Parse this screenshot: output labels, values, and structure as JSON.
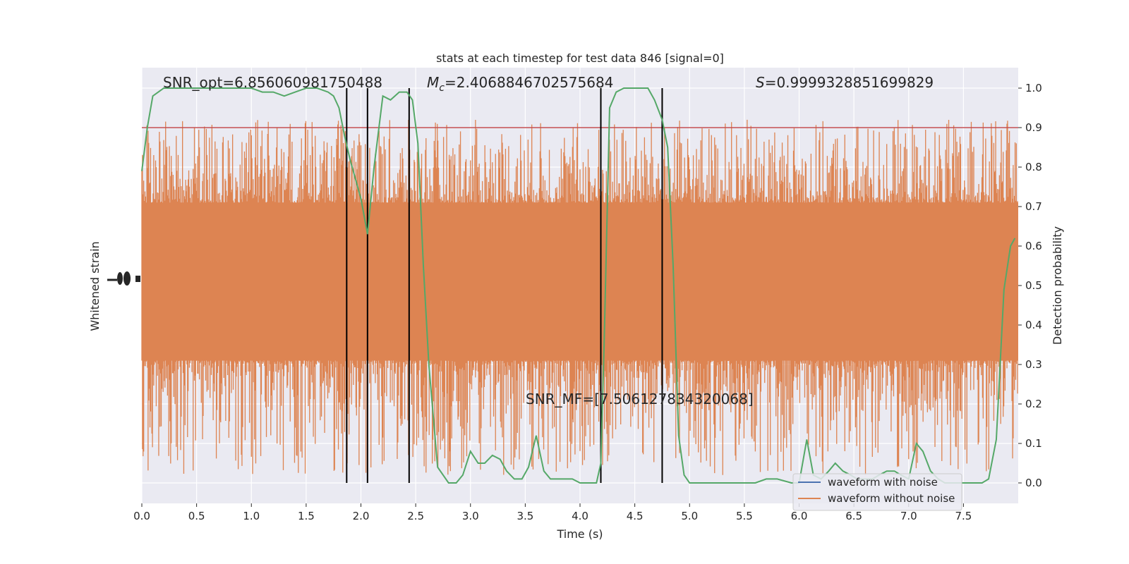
{
  "chart_data": {
    "type": "line",
    "title": "stats at each timestep for test data 846 [signal=0]",
    "xlabel": "Time (s)",
    "ylabel_left": "Whitened strain",
    "ylabel_right": "Detection probability",
    "xlim": [
      0.0,
      8.0
    ],
    "ylim_right": [
      -0.05,
      1.05
    ],
    "x_ticks": [
      "0.0",
      "0.5",
      "1.0",
      "1.5",
      "2.0",
      "2.5",
      "3.0",
      "3.5",
      "4.0",
      "4.5",
      "5.0",
      "5.5",
      "6.0",
      "6.5",
      "7.0",
      "7.5"
    ],
    "right_ticks": [
      "0.0",
      "0.1",
      "0.2",
      "0.3",
      "0.4",
      "0.5",
      "0.6",
      "0.7",
      "0.8",
      "0.9",
      "1.0"
    ],
    "grid": true,
    "annotations": [
      {
        "text": "SNR_opt=6.856060981750488"
      },
      {
        "prefix": "M",
        "sub": "c",
        "text": "=2.4068846702575684"
      },
      {
        "prefix": "S",
        "text": "=0.9999328851699829"
      },
      {
        "text": "SNR_MF=[7.506127834320068]"
      }
    ],
    "threshold": 0.9,
    "vertical_lines_x": [
      1.87,
      2.06,
      2.44,
      4.19,
      4.75
    ],
    "legend": {
      "placement": "lower-right",
      "entries": [
        {
          "label": "waveform with noise",
          "color": "#4c72b0"
        },
        {
          "label": "waveform without noise",
          "color": "#dd8452"
        }
      ]
    },
    "noise_envelope": {
      "x": [
        0.0,
        0.5,
        1.0,
        1.5,
        2.0,
        2.5,
        3.0,
        3.5,
        4.0,
        4.5,
        5.0,
        5.5,
        6.0,
        6.5,
        7.0,
        7.5,
        8.0
      ],
      "core_upper": 0.71,
      "core_lower": 0.31,
      "peak_upper": 0.92,
      "peak_lower": 0.02
    },
    "series": [
      {
        "name": "Detection probability",
        "color": "#55a868",
        "x": [
          0.0,
          0.05,
          0.1,
          0.2,
          0.3,
          0.5,
          0.7,
          1.0,
          1.1,
          1.2,
          1.3,
          1.4,
          1.5,
          1.6,
          1.7,
          1.75,
          1.8,
          1.85,
          1.9,
          2.0,
          2.06,
          2.12,
          2.2,
          2.27,
          2.35,
          2.42,
          2.47,
          2.52,
          2.57,
          2.62,
          2.7,
          2.8,
          2.87,
          2.93,
          3.0,
          3.07,
          3.13,
          3.2,
          3.27,
          3.33,
          3.4,
          3.47,
          3.53,
          3.6,
          3.67,
          3.73,
          3.8,
          3.87,
          3.93,
          4.0,
          4.1,
          4.15,
          4.19,
          4.22,
          4.27,
          4.33,
          4.4,
          4.5,
          4.62,
          4.68,
          4.75,
          4.8,
          4.85,
          4.9,
          4.95,
          5.0,
          5.1,
          5.3,
          5.5,
          5.6,
          5.7,
          5.8,
          5.93,
          6.0,
          6.07,
          6.13,
          6.2,
          6.27,
          6.33,
          6.4,
          6.47,
          6.53,
          6.6,
          6.67,
          6.73,
          6.8,
          6.87,
          6.93,
          7.0,
          7.07,
          7.13,
          7.2,
          7.27,
          7.33,
          7.4,
          7.47,
          7.53,
          7.6,
          7.67,
          7.73,
          7.8,
          7.87,
          7.93,
          7.97
        ],
        "y": [
          0.79,
          0.9,
          0.98,
          1.0,
          1.0,
          1.0,
          1.0,
          1.0,
          0.99,
          0.99,
          0.98,
          0.99,
          1.0,
          1.0,
          0.99,
          0.98,
          0.95,
          0.88,
          0.82,
          0.72,
          0.63,
          0.8,
          0.98,
          0.97,
          0.99,
          0.99,
          0.97,
          0.86,
          0.55,
          0.3,
          0.04,
          0.0,
          0.0,
          0.02,
          0.08,
          0.05,
          0.05,
          0.07,
          0.06,
          0.03,
          0.01,
          0.01,
          0.04,
          0.12,
          0.03,
          0.01,
          0.01,
          0.01,
          0.01,
          0.0,
          0.0,
          0.0,
          0.05,
          0.35,
          0.95,
          0.99,
          1.0,
          1.0,
          1.0,
          0.97,
          0.92,
          0.85,
          0.55,
          0.12,
          0.02,
          0.0,
          0.0,
          0.0,
          0.0,
          0.0,
          0.01,
          0.01,
          0.0,
          0.0,
          0.11,
          0.02,
          0.01,
          0.03,
          0.05,
          0.03,
          0.02,
          0.01,
          0.01,
          0.01,
          0.02,
          0.03,
          0.03,
          0.02,
          0.01,
          0.1,
          0.08,
          0.03,
          0.01,
          0.0,
          0.0,
          0.0,
          0.0,
          0.0,
          0.0,
          0.01,
          0.11,
          0.49,
          0.6,
          0.62
        ]
      }
    ]
  }
}
